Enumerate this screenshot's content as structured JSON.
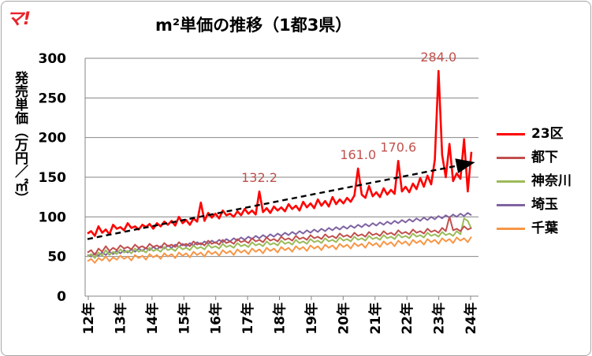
{
  "logo": {
    "text": "マ!"
  },
  "chart_data": {
    "type": "line",
    "title": "m²単価の推移（1都3県）",
    "ylabel": "発売単価（万円／㎡）",
    "ylim": [
      0,
      300
    ],
    "yticks": [
      0,
      50,
      100,
      150,
      200,
      250,
      300
    ],
    "xlabel": "",
    "x_tick_labels": [
      "12年",
      "13年",
      "14年",
      "15年",
      "16年",
      "17年",
      "18年",
      "19年",
      "20年",
      "21年",
      "22年",
      "23年",
      "24年"
    ],
    "grid": true,
    "legend_position": "right",
    "series": [
      {
        "name": "23区",
        "color": "#ff0000",
        "values": [
          79,
          82,
          76,
          88,
          80,
          84,
          78,
          90,
          85,
          87,
          83,
          92,
          86,
          88,
          84,
          90,
          87,
          91,
          85,
          92,
          88,
          94,
          90,
          95,
          89,
          100,
          92,
          96,
          90,
          98,
          94,
          118,
          95,
          105,
          99,
          104,
          98,
          108,
          102,
          104,
          100,
          107,
          102,
          110,
          104,
          108,
          103,
          132,
          106,
          111,
          105,
          113,
          108,
          112,
          107,
          116,
          110,
          114,
          108,
          119,
          112,
          117,
          111,
          122,
          114,
          120,
          113,
          125,
          116,
          122,
          117,
          124,
          119,
          127,
          161,
          128,
          124,
          139,
          126,
          131,
          125,
          136,
          128,
          134,
          129,
          170.6,
          132,
          138,
          131,
          142,
          135,
          149,
          138,
          152,
          141,
          172,
          284,
          178,
          150,
          192,
          145,
          155,
          148,
          198,
          132,
          182
        ]
      },
      {
        "name": "都下",
        "color": "#c0504d",
        "values": [
          55,
          58,
          52,
          60,
          56,
          63,
          57,
          61,
          58,
          64,
          60,
          62,
          59,
          65,
          61,
          63,
          60,
          66,
          62,
          64,
          61,
          67,
          63,
          65,
          62,
          68,
          64,
          66,
          63,
          69,
          65,
          67,
          64,
          70,
          66,
          68,
          65,
          71,
          67,
          69,
          66,
          72,
          68,
          70,
          67,
          73,
          69,
          71,
          68,
          74,
          70,
          72,
          69,
          75,
          71,
          73,
          70,
          76,
          72,
          74,
          71,
          77,
          73,
          75,
          72,
          78,
          74,
          76,
          73,
          79,
          75,
          77,
          74,
          80,
          76,
          78,
          75,
          81,
          77,
          79,
          76,
          82,
          78,
          80,
          77,
          83,
          79,
          81,
          78,
          84,
          80,
          82,
          79,
          85,
          81,
          83,
          80,
          86,
          82,
          100,
          83,
          85,
          82,
          88,
          84,
          86
        ]
      },
      {
        "name": "神奈川",
        "color": "#9bbb59",
        "values": [
          50,
          53,
          48,
          55,
          51,
          58,
          52,
          56,
          53,
          59,
          55,
          57,
          54,
          60,
          56,
          58,
          55,
          61,
          57,
          59,
          56,
          62,
          58,
          60,
          57,
          63,
          59,
          61,
          58,
          64,
          60,
          62,
          59,
          65,
          61,
          63,
          60,
          66,
          62,
          64,
          61,
          67,
          63,
          65,
          62,
          68,
          64,
          66,
          63,
          69,
          65,
          67,
          64,
          70,
          66,
          68,
          65,
          71,
          67,
          69,
          66,
          72,
          68,
          70,
          67,
          73,
          69,
          71,
          68,
          74,
          70,
          72,
          69,
          75,
          71,
          73,
          70,
          76,
          72,
          74,
          71,
          77,
          73,
          75,
          72,
          78,
          74,
          76,
          73,
          79,
          75,
          77,
          74,
          80,
          76,
          78,
          75,
          81,
          77,
          79,
          76,
          82,
          78,
          98,
          95,
          85
        ]
      },
      {
        "name": "埼玉",
        "color": "#8064a2",
        "values": [
          52,
          50,
          54,
          51,
          55,
          52,
          56,
          53,
          57,
          54,
          58,
          55,
          59,
          56,
          60,
          57,
          61,
          58,
          62,
          59,
          63,
          60,
          64,
          61,
          65,
          62,
          66,
          63,
          67,
          64,
          68,
          65,
          69,
          66,
          70,
          67,
          71,
          68,
          72,
          69,
          73,
          70,
          74,
          71,
          75,
          72,
          76,
          73,
          77,
          74,
          78,
          75,
          79,
          76,
          80,
          77,
          81,
          78,
          82,
          79,
          83,
          80,
          84,
          81,
          85,
          82,
          86,
          83,
          87,
          84,
          88,
          85,
          89,
          86,
          90,
          87,
          91,
          88,
          92,
          89,
          93,
          90,
          94,
          91,
          95,
          92,
          96,
          93,
          97,
          94,
          98,
          95,
          99,
          96,
          100,
          97,
          101,
          98,
          102,
          99,
          103,
          100,
          104,
          101,
          105,
          102
        ]
      },
      {
        "name": "千葉",
        "color": "#f79646",
        "values": [
          44,
          47,
          42,
          48,
          45,
          50,
          44,
          49,
          46,
          51,
          47,
          50,
          45,
          52,
          48,
          51,
          46,
          53,
          49,
          52,
          47,
          54,
          50,
          53,
          48,
          55,
          51,
          54,
          49,
          56,
          52,
          55,
          50,
          57,
          53,
          56,
          51,
          58,
          54,
          57,
          52,
          59,
          55,
          58,
          53,
          60,
          56,
          59,
          54,
          61,
          57,
          60,
          55,
          62,
          58,
          61,
          56,
          63,
          59,
          62,
          57,
          64,
          60,
          63,
          58,
          65,
          61,
          64,
          59,
          66,
          62,
          65,
          60,
          67,
          63,
          66,
          61,
          68,
          64,
          67,
          62,
          69,
          65,
          68,
          63,
          70,
          66,
          69,
          64,
          71,
          67,
          70,
          65,
          72,
          68,
          71,
          66,
          73,
          69,
          72,
          67,
          74,
          70,
          73,
          68,
          75
        ]
      }
    ],
    "trend_line": {
      "from": [
        0,
        72
      ],
      "to": [
        105,
        168
      ],
      "color": "#000000",
      "style": "dashed-arrow"
    },
    "annotations": [
      {
        "text": "132.2",
        "index": 47,
        "value": 132.2,
        "color": "#c0504d"
      },
      {
        "text": "161.0",
        "index": 74,
        "value": 161.0,
        "color": "#c0504d"
      },
      {
        "text": "170.6",
        "index": 85,
        "value": 170.6,
        "color": "#c0504d"
      },
      {
        "text": "284.0",
        "index": 96,
        "value": 284.0,
        "color": "#c0504d"
      }
    ]
  }
}
